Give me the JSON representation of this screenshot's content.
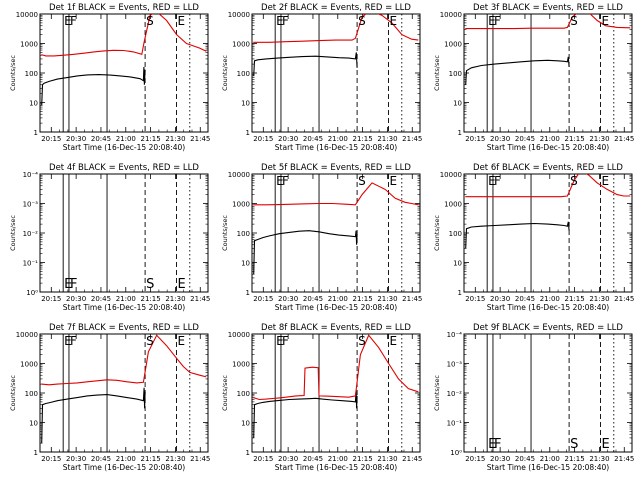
{
  "figure": {
    "x_ticks": [
      "20:15",
      "20:30",
      "20:45",
      "21:00",
      "21:15",
      "21:30",
      "21:45"
    ],
    "x_label": "Start Time (16-Dec-15 20:08:40)",
    "y_label": "Counts/sec",
    "ylim_log": [
      1,
      10000
    ],
    "xlim_minutes": [
      -0.5,
      101
    ],
    "markers": [
      {
        "name": "E",
        "minute": 13.5,
        "style": "solid"
      },
      {
        "name": "F",
        "minute": 17,
        "style": "solid"
      },
      {
        "name": "S",
        "minute": 63,
        "style": "dashed"
      },
      {
        "name": "E",
        "minute": 82,
        "style": "dashed"
      }
    ],
    "extra_lines": [
      {
        "minute": 40,
        "style": "solid"
      },
      {
        "minute": 90,
        "style": "dotted"
      }
    ],
    "series_colors": {
      "events": "#000000",
      "lld": "#e00000"
    }
  },
  "chart_data": [
    {
      "type": "line",
      "panel": 1,
      "title": "Det 1f BLACK = Events, RED = LLD",
      "xlabel": "Start Time (16-Dec-15 20:08:40)",
      "ylabel": "Counts/sec",
      "yticks": [
        "1",
        "10",
        "100",
        "1000",
        "10000"
      ],
      "series": [
        {
          "name": "Events",
          "color": "#000000",
          "x": [
            0.5,
            1,
            2,
            5,
            10,
            16,
            22,
            28,
            35,
            42,
            48,
            54,
            60,
            62,
            62.3,
            62.6,
            63
          ],
          "values": [
            8,
            40,
            45,
            52,
            62,
            70,
            80,
            86,
            88,
            85,
            80,
            74,
            64,
            55,
            160,
            40,
            130
          ]
        },
        {
          "name": "LLD",
          "color": "#e00000",
          "x": [
            0.3,
            3,
            8,
            14,
            20,
            26,
            32,
            38,
            44,
            50,
            56,
            61,
            62.5,
            66,
            70,
            76,
            82,
            88,
            96,
            100
          ],
          "values": [
            420,
            380,
            380,
            400,
            430,
            470,
            520,
            560,
            590,
            580,
            520,
            430,
            1200,
            9000,
            12000,
            6000,
            2000,
            1000,
            700,
            550
          ]
        }
      ]
    },
    {
      "type": "line",
      "panel": 2,
      "title": "Det 2f BLACK = Events, RED = LLD",
      "xlabel": "Start Time (16-Dec-15 20:08:40)",
      "ylabel": "Counts/sec",
      "yticks": [
        "1",
        "10",
        "100",
        "1000",
        "10000"
      ],
      "series": [
        {
          "name": "Events",
          "color": "#000000",
          "x": [
            0.5,
            1,
            3,
            8,
            15,
            22,
            30,
            38,
            45,
            52,
            58,
            62,
            62.5,
            63
          ],
          "values": [
            80,
            260,
            280,
            300,
            320,
            340,
            360,
            370,
            350,
            330,
            320,
            300,
            500,
            150
          ]
        },
        {
          "name": "LLD",
          "color": "#e00000",
          "x": [
            0.3,
            10,
            20,
            30,
            40,
            50,
            60,
            62,
            66,
            70,
            74,
            78,
            84,
            90,
            96,
            100
          ],
          "values": [
            1100,
            1100,
            1150,
            1200,
            1250,
            1300,
            1300,
            1500,
            8000,
            12000,
            11000,
            9000,
            5000,
            2000,
            1400,
            1300
          ]
        }
      ]
    },
    {
      "type": "line",
      "panel": 3,
      "title": "Det 3f BLACK = Events, RED = LLD",
      "xlabel": "Start Time (16-Dec-15 20:08:40)",
      "ylabel": "Counts/sec",
      "yticks": [
        "1",
        "10",
        "100",
        "1000",
        "10000"
      ],
      "series": [
        {
          "name": "Events",
          "color": "#000000",
          "x": [
            0.5,
            1,
            4,
            10,
            18,
            26,
            34,
            42,
            50,
            56,
            60,
            62,
            62.5,
            63
          ],
          "values": [
            40,
            120,
            150,
            180,
            200,
            220,
            240,
            260,
            270,
            260,
            250,
            240,
            350,
            160
          ]
        },
        {
          "name": "LLD",
          "color": "#e00000",
          "x": [
            0.3,
            10,
            20,
            30,
            40,
            50,
            60,
            62,
            65,
            70,
            75,
            80,
            85,
            92,
            100
          ],
          "values": [
            3200,
            3200,
            3200,
            3200,
            3300,
            3300,
            3300,
            3500,
            8000,
            13000,
            11000,
            6000,
            4000,
            3500,
            3400
          ]
        }
      ]
    },
    {
      "type": "line",
      "panel": 4,
      "title": "Det 4f BLACK = Events, RED = LLD",
      "xlabel": "Start Time (16-Dec-15 20:08:40)",
      "ylabel": "Counts/sec",
      "yticks": [
        "10⁰",
        "10⁻¹",
        "10⁻²",
        "10⁻³",
        "10⁻⁴"
      ],
      "series": []
    },
    {
      "type": "line",
      "panel": 5,
      "title": "Det 5f BLACK = Events, RED = LLD",
      "xlabel": "Start Time (16-Dec-15 20:08:40)",
      "ylabel": "Counts/sec",
      "yticks": [
        "1",
        "10",
        "100",
        "1000",
        "10000"
      ],
      "series": [
        {
          "name": "Events",
          "color": "#000000",
          "x": [
            0.5,
            1,
            3,
            6,
            10,
            16,
            22,
            28,
            34,
            40,
            46,
            52,
            58,
            62,
            62.4,
            62.7,
            63
          ],
          "values": [
            4,
            55,
            60,
            70,
            80,
            95,
            105,
            115,
            120,
            110,
            95,
            85,
            80,
            75,
            120,
            40,
            90
          ]
        },
        {
          "name": "LLD",
          "color": "#e00000",
          "x": [
            0.3,
            8,
            16,
            24,
            32,
            40,
            48,
            56,
            62,
            66,
            72,
            80,
            86,
            92,
            96,
            100
          ],
          "values": [
            900,
            900,
            920,
            950,
            980,
            1000,
            1000,
            950,
            900,
            2000,
            5000,
            3000,
            1500,
            1100,
            1000,
            900
          ]
        }
      ]
    },
    {
      "type": "line",
      "panel": 6,
      "title": "Det 6f BLACK = Events, RED = LLD",
      "xlabel": "Start Time (16-Dec-15 20:08:40)",
      "ylabel": "Counts/sec",
      "yticks": [
        "1",
        "10",
        "100",
        "1000",
        "10000"
      ],
      "series": [
        {
          "name": "Events",
          "color": "#000000",
          "x": [
            0.5,
            1,
            4,
            10,
            18,
            26,
            34,
            42,
            50,
            56,
            60,
            62,
            62.5,
            63
          ],
          "values": [
            30,
            140,
            160,
            170,
            180,
            190,
            200,
            210,
            200,
            190,
            180,
            170,
            240,
            120
          ]
        },
        {
          "name": "LLD",
          "color": "#e00000",
          "x": [
            0.3,
            10,
            20,
            30,
            40,
            50,
            58,
            62,
            66,
            70,
            75,
            80,
            86,
            92,
            96,
            100
          ],
          "values": [
            1700,
            1700,
            1700,
            1700,
            1700,
            1700,
            1700,
            1800,
            6000,
            13000,
            9000,
            5000,
            3000,
            2000,
            1800,
            1800
          ]
        }
      ]
    },
    {
      "type": "line",
      "panel": 7,
      "title": "Det 7f BLACK = Events, RED = LLD",
      "xlabel": "Start Time (16-Dec-15 20:08:40)",
      "ylabel": "Counts/sec",
      "yticks": [
        "1",
        "10",
        "100",
        "1000",
        "10000"
      ],
      "series": [
        {
          "name": "Events",
          "color": "#000000",
          "x": [
            0.5,
            1,
            3,
            6,
            10,
            16,
            22,
            28,
            34,
            40,
            46,
            52,
            58,
            62,
            62.4,
            62.7,
            63
          ],
          "values": [
            2,
            40,
            44,
            48,
            55,
            62,
            70,
            80,
            85,
            88,
            80,
            70,
            62,
            55,
            150,
            30,
            110
          ]
        },
        {
          "name": "LLD",
          "color": "#e00000",
          "x": [
            0.3,
            5,
            10,
            16,
            22,
            28,
            34,
            40,
            46,
            52,
            58,
            62,
            65,
            70,
            76,
            82,
            86,
            90,
            96,
            100
          ],
          "values": [
            200,
            190,
            200,
            210,
            220,
            240,
            260,
            280,
            270,
            240,
            220,
            230,
            2500,
            9000,
            4000,
            1500,
            800,
            500,
            400,
            350
          ]
        }
      ]
    },
    {
      "type": "line",
      "panel": 8,
      "title": "Det 8f BLACK = Events, RED = LLD",
      "xlabel": "Start Time (16-Dec-15 20:08:40)",
      "ylabel": "Counts/sec",
      "yticks": [
        "1",
        "10",
        "100",
        "1000",
        "10000"
      ],
      "series": [
        {
          "name": "Events",
          "color": "#000000",
          "x": [
            0.5,
            1,
            3,
            6,
            10,
            16,
            22,
            28,
            34,
            38,
            42,
            48,
            54,
            60,
            62,
            62.4,
            62.7,
            63
          ],
          "values": [
            3,
            40,
            44,
            48,
            52,
            56,
            60,
            62,
            64,
            66,
            62,
            58,
            55,
            52,
            50,
            120,
            30,
            80
          ]
        },
        {
          "name": "LLD",
          "color": "#e00000",
          "x": [
            0.3,
            4,
            8,
            12,
            16,
            20,
            26,
            31,
            31.5,
            36,
            39.5,
            40,
            46,
            52,
            58,
            62,
            65,
            70,
            76,
            82,
            88,
            94,
            100
          ],
          "values": [
            70,
            60,
            62,
            65,
            68,
            72,
            80,
            82,
            700,
            750,
            720,
            80,
            78,
            75,
            72,
            80,
            2000,
            9000,
            3500,
            1000,
            300,
            140,
            110
          ]
        }
      ]
    },
    {
      "type": "line",
      "panel": 9,
      "title": "Det 9f BLACK = Events, RED = LLD",
      "xlabel": "Start Time (16-Dec-15 20:08:40)",
      "ylabel": "Counts/sec",
      "yticks": [
        "10⁰",
        "10⁻¹",
        "10⁻²",
        "10⁻³",
        "10⁻⁴"
      ],
      "series": []
    }
  ]
}
